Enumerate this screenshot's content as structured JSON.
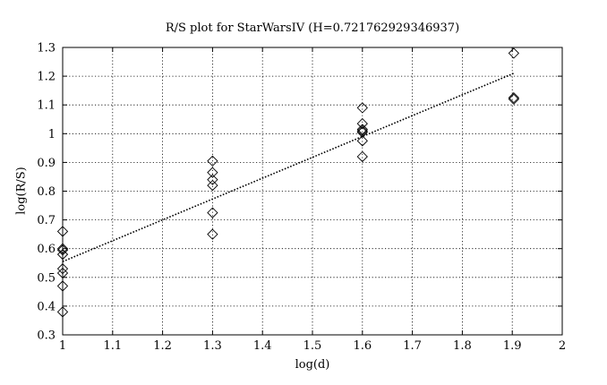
{
  "chart_data": {
    "type": "scatter",
    "title": "R/S plot for StarWarsIV (H=0.721762929346937)",
    "xlabel": "log(d)",
    "ylabel": "log(R/S)",
    "xlim": [
      1,
      2
    ],
    "ylim": [
      0.3,
      1.3
    ],
    "xticks": [
      "1",
      "1.1",
      "1.2",
      "1.3",
      "1.4",
      "1.5",
      "1.6",
      "1.7",
      "1.8",
      "1.9",
      "2"
    ],
    "yticks": [
      "0.3",
      "0.4",
      "0.5",
      "0.6",
      "0.7",
      "0.8",
      "0.9",
      "1",
      "1.1",
      "1.2",
      "1.3"
    ],
    "grid": true,
    "marker": "diamond",
    "points": [
      [
        1.0,
        0.66
      ],
      [
        1.0,
        0.6
      ],
      [
        1.0,
        0.595
      ],
      [
        1.0,
        0.58
      ],
      [
        1.0,
        0.53
      ],
      [
        1.0,
        0.515
      ],
      [
        1.0,
        0.47
      ],
      [
        1.0,
        0.38
      ],
      [
        1.3,
        0.905
      ],
      [
        1.3,
        0.865
      ],
      [
        1.3,
        0.84
      ],
      [
        1.3,
        0.82
      ],
      [
        1.3,
        0.725
      ],
      [
        1.3,
        0.65
      ],
      [
        1.6,
        1.09
      ],
      [
        1.6,
        1.035
      ],
      [
        1.6,
        1.015
      ],
      [
        1.6,
        1.01
      ],
      [
        1.6,
        1.005
      ],
      [
        1.6,
        0.975
      ],
      [
        1.6,
        0.92
      ],
      [
        1.903,
        1.28
      ],
      [
        1.903,
        1.125
      ],
      [
        1.903,
        1.12
      ]
    ],
    "fit_line": {
      "style": "dotted",
      "x": [
        1.0,
        1.903
      ],
      "y": [
        0.555,
        1.21
      ]
    }
  }
}
